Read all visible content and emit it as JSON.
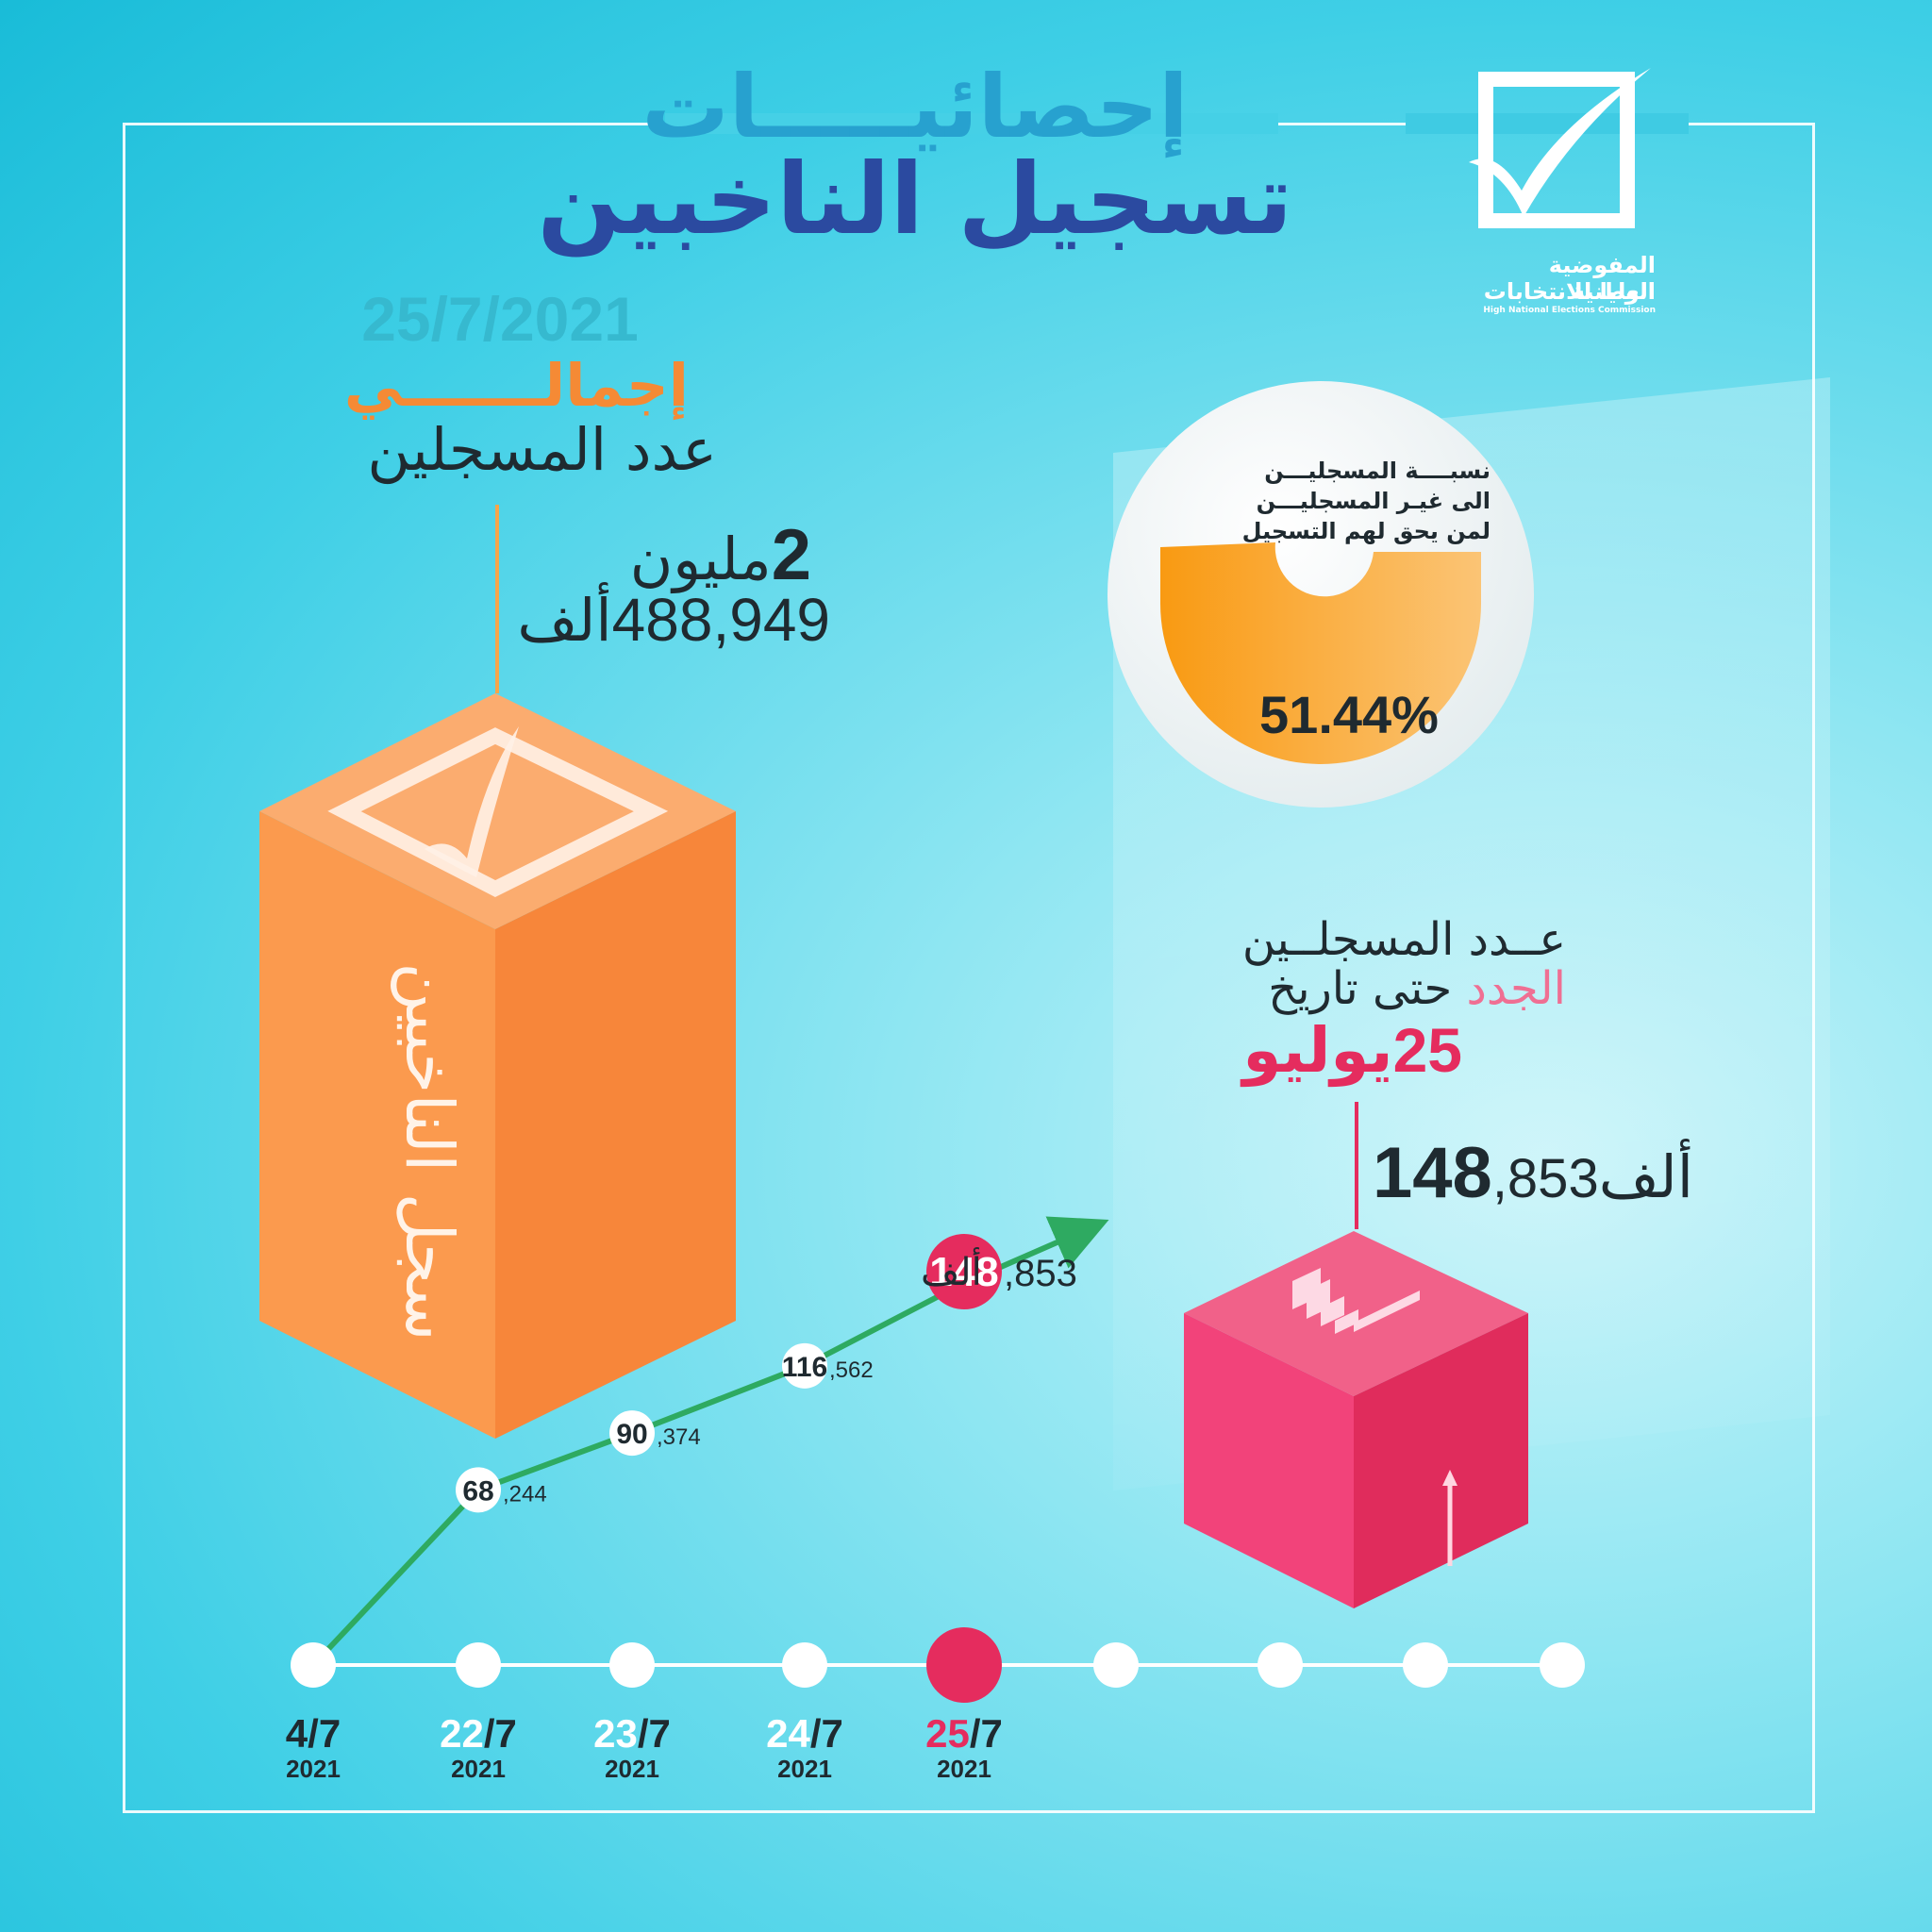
{
  "header": {
    "title_line1": "إحصائيـــــات",
    "title_line2": "تسجيل الناخبين"
  },
  "logo": {
    "line1": "المفوضية الوطنية",
    "line2": "العليا للانتخابات",
    "line3": "High National Elections Commission"
  },
  "total": {
    "date": "25/7/2021",
    "label_orange": "إجمالـــــــي",
    "label_dark": "عدد المسجلين",
    "millions_num": "2",
    "millions_word": "مليون",
    "thousands_num": "488,949",
    "thousands_word": "ألف",
    "box_label": "سجل الناخبين"
  },
  "ratio": {
    "line1": "نسبــــة المسجليـــن",
    "line2": "الى غيـر المسجليـــن",
    "line3": "لمن يحق لهم التسجيل",
    "percent": "51.44%",
    "value": 51.44
  },
  "new_registrants": {
    "line1": "عــدد المسجلــين",
    "line2_pink": "الجدد",
    "line2_dark": "حتى تاريخ",
    "date_num": "25",
    "date_word": "يوليو",
    "value_big": "148",
    "value_small": ",853",
    "value_word": "ألف"
  },
  "colors": {
    "orange": "#f58a35",
    "pink": "#e52c5e",
    "green": "#2eaa61",
    "navy": "#2b4aa0",
    "teal": "#2cb5cd"
  },
  "chart_data": {
    "type": "line",
    "x": [
      "4/7 2021",
      "22/7 2021",
      "23/7 2021",
      "24/7 2021",
      "25/7 2021"
    ],
    "y": [
      0,
      68244,
      90374,
      116562,
      148853
    ],
    "labels": [
      {
        "big": "68",
        "small": ",244"
      },
      {
        "big": "90",
        "small": ",374"
      },
      {
        "big": "116",
        "small": ",562"
      },
      {
        "big": "148",
        "small": ",853",
        "suffix": "ألف"
      }
    ],
    "timeline": [
      {
        "day": "4/7",
        "year": "2021",
        "highlight": false
      },
      {
        "day": "22/7",
        "year": "2021",
        "highlight": false
      },
      {
        "day": "23/7",
        "year": "2021",
        "highlight": false
      },
      {
        "day": "24/7",
        "year": "2021",
        "highlight": false
      },
      {
        "day": "25/7",
        "year": "2021",
        "highlight": true
      },
      {
        "day": "",
        "year": "",
        "highlight": false
      },
      {
        "day": "",
        "year": "",
        "highlight": false
      },
      {
        "day": "",
        "year": "",
        "highlight": false
      },
      {
        "day": "",
        "year": "",
        "highlight": false
      }
    ]
  }
}
